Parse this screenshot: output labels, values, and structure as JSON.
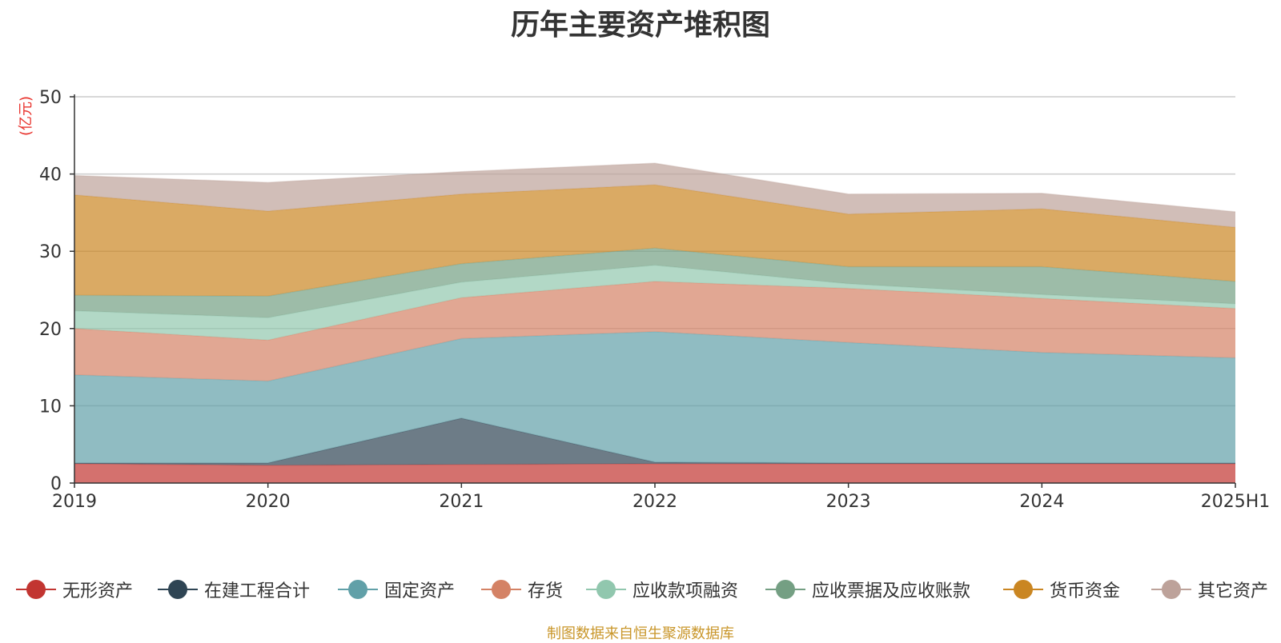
{
  "chart_data": {
    "type": "area",
    "stacked": true,
    "title": "历年主要资产堆积图",
    "unit_label": "(亿元)",
    "categories": [
      "2019",
      "2020",
      "2021",
      "2022",
      "2023",
      "2024",
      "2025H1"
    ],
    "ylim": [
      0,
      50
    ],
    "yticks": [
      0,
      10,
      20,
      30,
      40,
      50
    ],
    "grid": true,
    "legend_position": "bottom",
    "series": [
      {
        "name": "无形资产",
        "color": "#c23531",
        "values": [
          2.5,
          2.3,
          2.4,
          2.5,
          2.5,
          2.5,
          2.5
        ]
      },
      {
        "name": "在建工程合计",
        "color": "#2f4554",
        "values": [
          0.1,
          0.3,
          6.0,
          0.2,
          0.1,
          0.1,
          0.1
        ]
      },
      {
        "name": "固定资产",
        "color": "#61a0a8",
        "values": [
          11.4,
          10.6,
          10.3,
          16.9,
          15.6,
          14.3,
          13.6
        ]
      },
      {
        "name": "存货",
        "color": "#d48265",
        "values": [
          6.0,
          5.3,
          5.3,
          6.5,
          7.0,
          7.0,
          6.4
        ]
      },
      {
        "name": "应收款项融资",
        "color": "#91c7ae",
        "values": [
          2.3,
          2.9,
          2.0,
          2.1,
          0.6,
          0.5,
          0.6
        ]
      },
      {
        "name": "应收票据及应收账款",
        "color": "#749f83",
        "values": [
          2.0,
          2.8,
          2.4,
          2.2,
          2.2,
          3.6,
          2.9
        ]
      },
      {
        "name": "货币资金",
        "color": "#ca8622",
        "values": [
          13.0,
          11.0,
          9.0,
          8.2,
          6.8,
          7.5,
          7.0
        ]
      },
      {
        "name": "其它资产",
        "color": "#bda29a",
        "values": [
          2.5,
          3.7,
          2.9,
          2.8,
          2.6,
          2.0,
          2.0
        ]
      }
    ],
    "source_note": "制图数据来自恒生聚源数据库"
  }
}
